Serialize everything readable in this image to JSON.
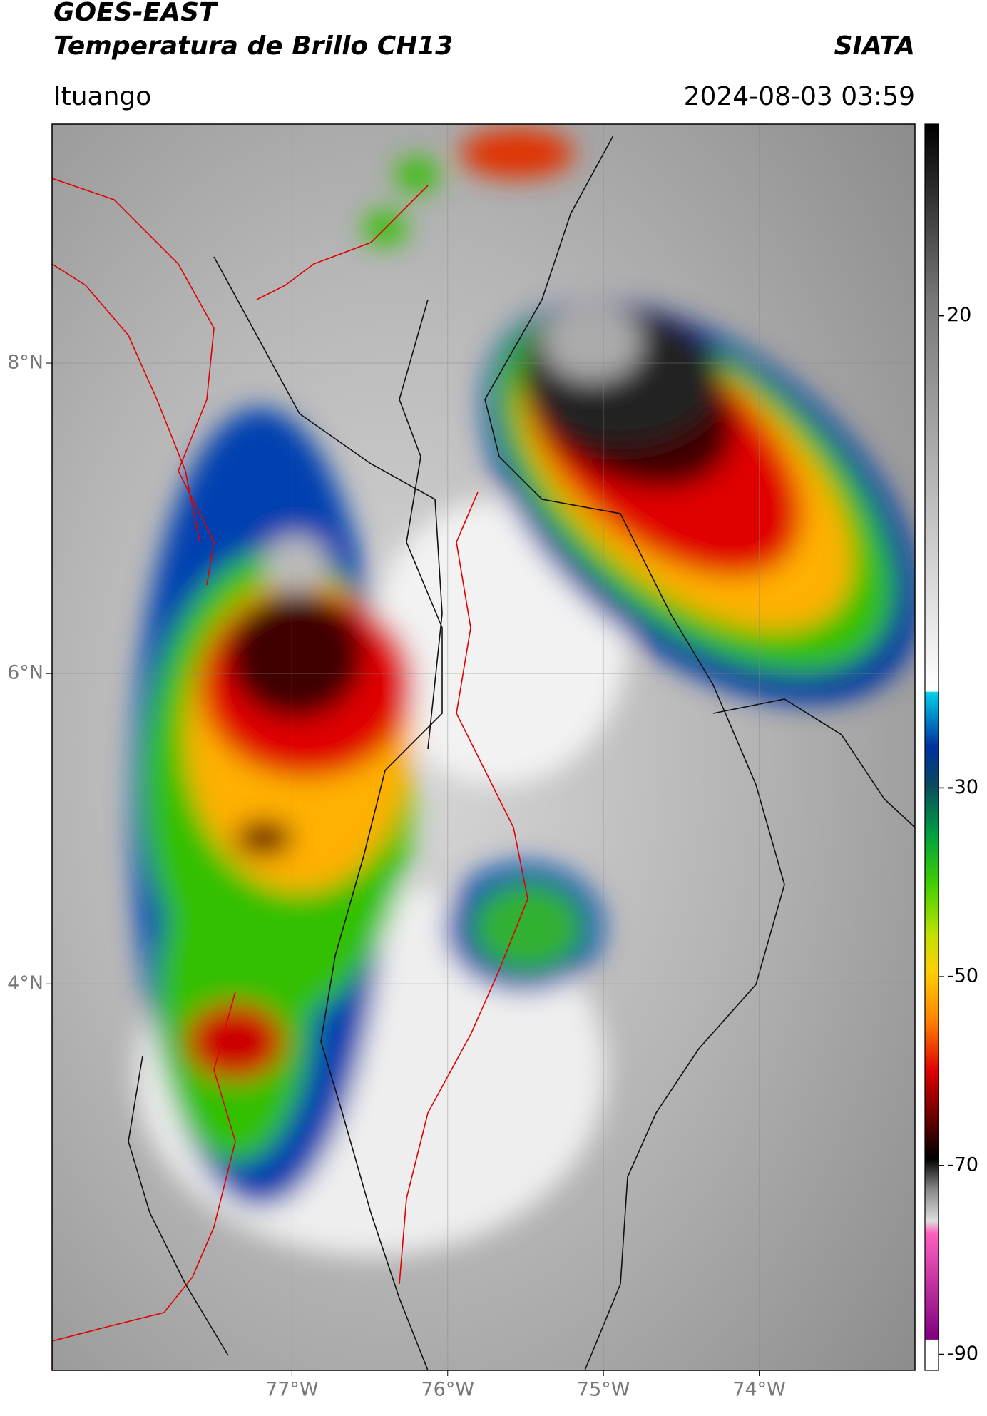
{
  "header": {
    "title": "GOES-EAST",
    "subtitle": "Temperatura de Brillo CH13",
    "source": "SIATA",
    "location": "Ituango",
    "datetime": "2024-08-03 03:59"
  },
  "map": {
    "xlim": [
      -78.54,
      -73.0
    ],
    "ylim": [
      1.51,
      9.54
    ],
    "xticks": [
      {
        "value": -77,
        "label": "77°W"
      },
      {
        "value": -76,
        "label": "76°W"
      },
      {
        "value": -75,
        "label": "75°W"
      },
      {
        "value": -74,
        "label": "74°W"
      }
    ],
    "yticks": [
      {
        "value": 8,
        "label": "8°N"
      },
      {
        "value": 6,
        "label": "6°N"
      },
      {
        "value": 4,
        "label": "4°N"
      }
    ],
    "grid": true
  },
  "colorbar": {
    "clim": [
      -91.7,
      40.3
    ],
    "ticks": [
      20,
      -30,
      -50,
      -70,
      -90
    ]
  }
}
